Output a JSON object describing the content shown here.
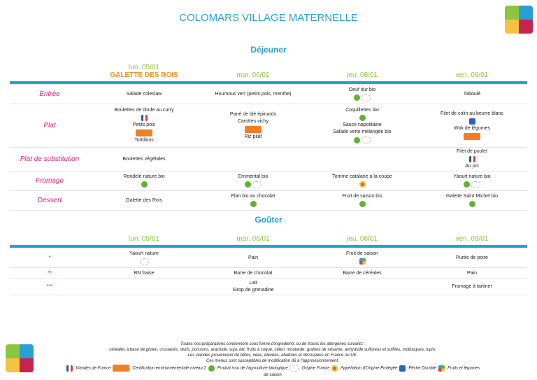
{
  "title": "COLOMARS VILLAGE MATERNELLE",
  "dejeuner": {
    "title": "Déjeuner",
    "days": [
      {
        "label": "lun. 05/01",
        "sub": "GALETTE DES ROIS"
      },
      {
        "label": "mar. 06/01"
      },
      {
        "label": "jeu. 08/01"
      },
      {
        "label": "ven. 09/01"
      }
    ],
    "rows": [
      {
        "label": "Entrée",
        "cells": [
          [
            "Salade coleslaw"
          ],
          [
            "Houmous vert (petits pois, menthe)"
          ],
          [
            "Oeuf dur bio",
            [
              "bio-icon",
              "origine-france-icon"
            ]
          ],
          [
            "Taboulé"
          ]
        ]
      },
      {
        "label": "Plat",
        "cells": [
          [
            "Boulettes de dinde au curry",
            [
              "viandes-de-france-icon"
            ],
            "Petits pois",
            [
              "hve-icon"
            ],
            "Tortillons"
          ],
          [
            "Pané de blé épinards",
            "Carottes vichy",
            [
              "hve-icon"
            ],
            "Riz pilaf"
          ],
          [
            "Coquillettes bio",
            [
              "bio-icon"
            ],
            "Sauce napolitaine",
            "Salade verte mélangée bio",
            [
              "bio-icon",
              "origine-france-icon"
            ]
          ],
          [
            "Filet de colin au beurre blanc",
            [
              "peche-durable-icon"
            ],
            "Wok de légumes",
            [
              "hve-icon"
            ]
          ]
        ]
      },
      {
        "label": "Plat de substitution",
        "cells": [
          [
            "Boulettes végétales"
          ],
          [],
          [],
          [
            "Filet de poulet",
            [
              "viandes-de-france-icon"
            ],
            "Au jus"
          ]
        ]
      },
      {
        "label": "Fromage",
        "cells": [
          [
            "Rondelé nature bio",
            [
              "bio-icon"
            ]
          ],
          [
            "Emmental bio",
            [
              "bio-icon",
              "origine-france-icon"
            ]
          ],
          [
            "Tomme catalane à la coupe",
            [
              "aop-icon"
            ]
          ],
          [
            "Yaourt nature bio",
            [
              "bio-icon",
              "origine-france-icon"
            ]
          ]
        ]
      },
      {
        "label": "Dessert",
        "cells": [
          [
            "Galette des Rois"
          ],
          [
            "Flan bio au chocolat",
            [
              "bio-icon"
            ]
          ],
          [
            "Fruit de saison bio",
            [
              "bio-icon"
            ]
          ],
          [
            "Galette Saint Michel bio",
            [
              "bio-icon"
            ]
          ]
        ]
      }
    ]
  },
  "gouter": {
    "title": "Goûter",
    "days": [
      {
        "label": "lun. 05/01"
      },
      {
        "label": "mar. 06/01"
      },
      {
        "label": "jeu. 08/01"
      },
      {
        "label": "ven. 09/01"
      }
    ],
    "rows": [
      {
        "label": "*",
        "cells": [
          [
            "Yaourt nature",
            [
              "origine-france-icon"
            ]
          ],
          [
            "Pain"
          ],
          [
            "Fruit de saison",
            [
              "saison-icon"
            ]
          ],
          [
            "Purée de poire"
          ]
        ]
      },
      {
        "label": "**",
        "cells": [
          [
            "BN fraise"
          ],
          [
            "Barre de chocolat"
          ],
          [
            "Barre de céréales"
          ],
          [
            "Pain"
          ]
        ]
      },
      {
        "label": "***",
        "cells": [
          [],
          [
            "Lait",
            "Sirop de grenadine"
          ],
          [],
          [
            "Fromage à tartiner"
          ]
        ]
      }
    ]
  },
  "footer": {
    "lines": [
      "Toutes nos préparations contiennent sous forme d'ingrédients ou de traces les allergènes suivants :",
      "céréales à base de gluten, crustacés, œufs, poissons, arachide, soja, lait, fruits à coque, céleri, moutarde, graines de sésame, anhydride sulfureux et sulfites, mollusques, lupin.",
      "Les viandes proviennent de bêtes, nées, élevées, abattues et découpées en France ou UE.",
      "Ces menus sont susceptibles de modification dû à l'approvisionnement."
    ],
    "legend": [
      {
        "icon": "viandes-de-france-icon",
        "text": ": Viandes de France"
      },
      {
        "icon": "hve-icon",
        "text": ": Certification environnementale niveau 2"
      },
      {
        "icon": "bio-icon",
        "text": ": Produit issu de l'agriculture biologique"
      },
      {
        "icon": "origine-france-icon",
        "text": ": Origine France"
      },
      {
        "icon": "aop-icon",
        "text": ": Appellation d'Origine Protégée"
      },
      {
        "icon": "peche-durable-icon",
        "text": ": Pêche Durable"
      },
      {
        "icon": "saison-icon",
        "text": ": Fruits et légumes de saison"
      }
    ]
  }
}
